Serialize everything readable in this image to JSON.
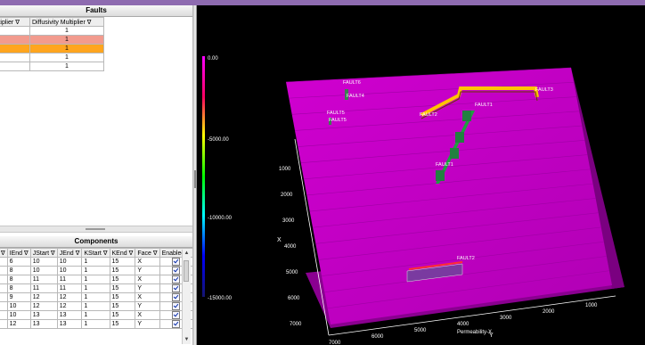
{
  "faults": {
    "title": "Faults",
    "columns": [
      "ultiplier",
      "Diffusivity Multiplier"
    ],
    "filter_glyph": "∇",
    "rows": [
      {
        "diffusivity": "1",
        "style": "normal"
      },
      {
        "diffusivity": "1",
        "style": "salmon"
      },
      {
        "diffusivity": "1",
        "style": "orange"
      },
      {
        "diffusivity": "1",
        "style": "normal"
      },
      {
        "diffusivity": "1",
        "style": "normal"
      }
    ]
  },
  "components": {
    "title": "Components",
    "columns": [
      "t",
      "IEnd",
      "JStart",
      "JEnd",
      "KStart",
      "KEnd",
      "Face",
      "Enabled"
    ],
    "rows": [
      {
        "iend": "6",
        "jstart": "10",
        "jend": "10",
        "kstart": "1",
        "kend": "15",
        "face": "X",
        "enabled": true
      },
      {
        "iend": "8",
        "jstart": "10",
        "jend": "10",
        "kstart": "1",
        "kend": "15",
        "face": "Y",
        "enabled": true
      },
      {
        "iend": "8",
        "jstart": "11",
        "jend": "11",
        "kstart": "1",
        "kend": "15",
        "face": "X",
        "enabled": true
      },
      {
        "iend": "8",
        "jstart": "11",
        "jend": "11",
        "kstart": "1",
        "kend": "15",
        "face": "Y",
        "enabled": true
      },
      {
        "iend": "9",
        "jstart": "12",
        "jend": "12",
        "kstart": "1",
        "kend": "15",
        "face": "X",
        "enabled": true
      },
      {
        "iend": "10",
        "jstart": "12",
        "jend": "12",
        "kstart": "1",
        "kend": "15",
        "face": "Y",
        "enabled": true
      },
      {
        "iend": "10",
        "jstart": "13",
        "jend": "13",
        "kstart": "1",
        "kend": "15",
        "face": "X",
        "enabled": true
      },
      {
        "iend": "12",
        "jstart": "13",
        "jend": "13",
        "kstart": "1",
        "kend": "15",
        "face": "Y",
        "enabled": true
      }
    ]
  },
  "colorbar": {
    "labels": [
      "0.00",
      "-5000.00",
      "-10000.00",
      "-15000.00"
    ],
    "gradient": [
      "#ff00ff",
      "#e00000",
      "#ffff00",
      "#00ff00",
      "#00ffff",
      "#0000ff",
      "#101080"
    ]
  },
  "view3d": {
    "surface_color": "#c000c0",
    "fault_labels": [
      "FAULT6",
      "FAULT4",
      "FAULT5",
      "FAULT5",
      "FAULT3",
      "FAULT2",
      "FAULT1",
      "FAULT1",
      "FAULT2"
    ],
    "y_axis_ticks": [
      "1000",
      "2000",
      "3000",
      "4000",
      "5000",
      "6000",
      "7000"
    ],
    "x_axis_ticks": [
      "7000",
      "6000",
      "5000",
      "4000",
      "3000",
      "2000",
      "1000"
    ],
    "axis_labels": {
      "x": "X",
      "y": "Y",
      "property": "Permeability-X"
    }
  }
}
